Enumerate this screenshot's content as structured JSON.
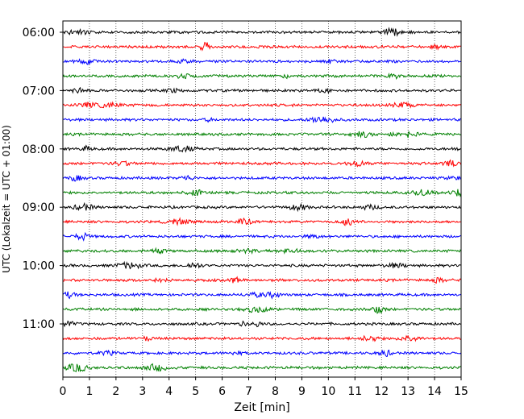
{
  "chart_data": {
    "type": "line",
    "title": "",
    "xlabel": "Zeit  [min]",
    "ylabel": "UTC (Lokalzeit = UTC + 01:00)",
    "xlim": [
      0,
      15
    ],
    "x_ticks": [
      "0",
      "1",
      "2",
      "3",
      "4",
      "5",
      "6",
      "7",
      "8",
      "9",
      "10",
      "11",
      "12",
      "13",
      "14",
      "15"
    ],
    "y_tick_labels": [
      "06:00",
      "07:00",
      "08:00",
      "09:00",
      "10:00",
      "11:00"
    ],
    "grid": "vertical dotted",
    "trace_interval_min": 15,
    "trace_start": "06:00",
    "trace_count": 24,
    "trace_colors": [
      "#000000",
      "#ff0000",
      "#0000ff",
      "#008000"
    ],
    "series_note": "seismogram helicorder; each row is 15 minutes of ground-motion signal"
  }
}
